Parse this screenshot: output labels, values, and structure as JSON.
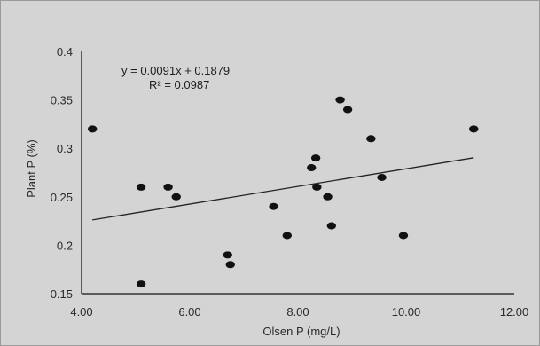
{
  "chart_data": {
    "type": "scatter",
    "title": "",
    "xlabel": "Olsen  P (mg/L)",
    "ylabel": "Plant P (%)",
    "xlim": [
      4.0,
      12.0
    ],
    "ylim": [
      0.15,
      0.4
    ],
    "x_ticks": [
      "4.00",
      "6.00",
      "8.00",
      "10.00",
      "12.00"
    ],
    "y_ticks": [
      "0.15",
      "0.2",
      "0.25",
      "0.3",
      "0.35",
      "0.4"
    ],
    "grid": false,
    "points": [
      {
        "x": 4.2,
        "y": 0.32
      },
      {
        "x": 5.1,
        "y": 0.26
      },
      {
        "x": 5.1,
        "y": 0.16
      },
      {
        "x": 5.6,
        "y": 0.26
      },
      {
        "x": 5.75,
        "y": 0.25
      },
      {
        "x": 6.7,
        "y": 0.19
      },
      {
        "x": 6.75,
        "y": 0.18
      },
      {
        "x": 7.55,
        "y": 0.24
      },
      {
        "x": 7.8,
        "y": 0.21
      },
      {
        "x": 8.25,
        "y": 0.28
      },
      {
        "x": 8.33,
        "y": 0.29
      },
      {
        "x": 8.35,
        "y": 0.26
      },
      {
        "x": 8.55,
        "y": 0.25
      },
      {
        "x": 8.62,
        "y": 0.22
      },
      {
        "x": 8.78,
        "y": 0.35
      },
      {
        "x": 8.92,
        "y": 0.34
      },
      {
        "x": 9.35,
        "y": 0.31
      },
      {
        "x": 9.55,
        "y": 0.27
      },
      {
        "x": 9.95,
        "y": 0.21
      },
      {
        "x": 11.25,
        "y": 0.32
      }
    ],
    "trendline": {
      "type": "linear",
      "slope": 0.0091,
      "intercept": 0.1879,
      "x_range": [
        4.2,
        11.25
      ],
      "equation_text": "y = 0.0091x + 0.1879",
      "r2_text": "R² = 0.0987"
    },
    "colors": {
      "marker": "#111111",
      "line": "#222222",
      "background": "#d4d4d4"
    }
  }
}
